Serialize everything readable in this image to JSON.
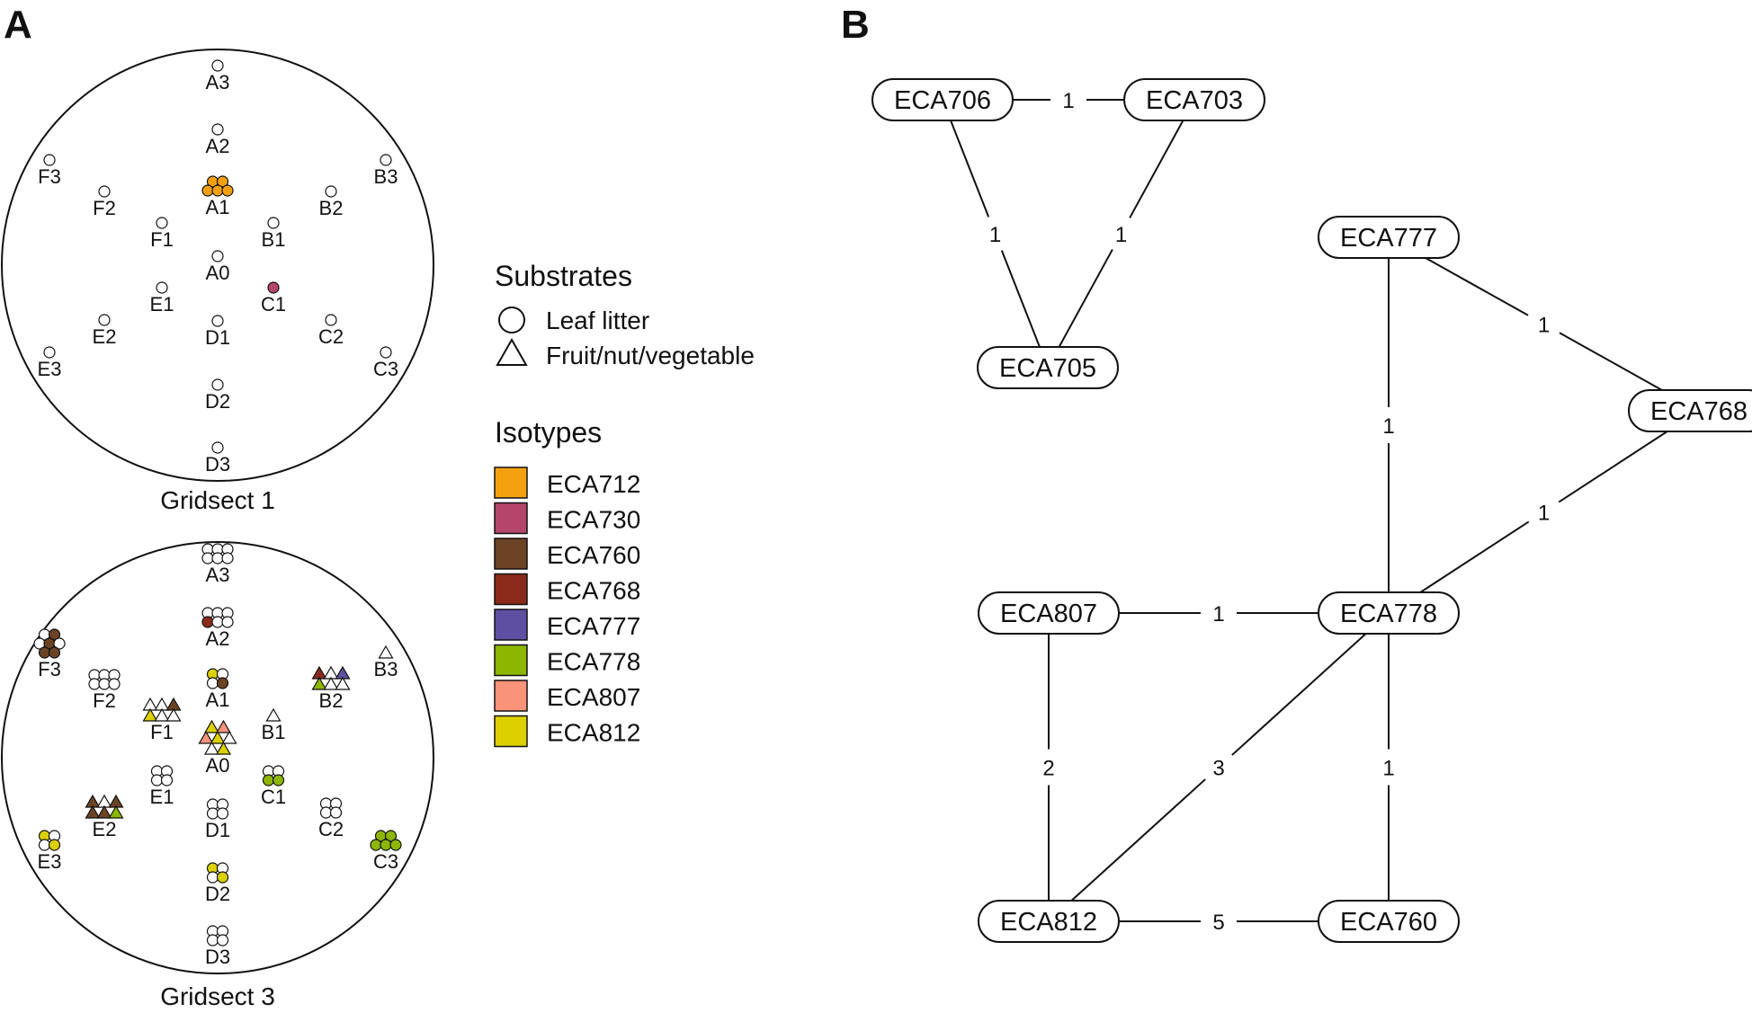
{
  "panels": {
    "a": "A",
    "b": "B"
  },
  "colors": {
    "ECA712": "#f5a10f",
    "ECA730": "#b4456b",
    "ECA760": "#6b4325",
    "ECA768": "#8b2a1a",
    "ECA777": "#5e4fa2",
    "ECA778": "#8db600",
    "ECA807": "#f9937a",
    "ECA812": "#dcd000"
  },
  "gridsects": [
    {
      "title": "Gridsect 1",
      "sites": [
        {
          "label": "A3",
          "shape": "circle",
          "fills": [
            null
          ]
        },
        {
          "label": "A2",
          "shape": "circle",
          "fills": [
            null
          ]
        },
        {
          "label": "A1",
          "shape": "circle",
          "fills": [
            "ECA712",
            "ECA712",
            "ECA712",
            "ECA712",
            "ECA712"
          ]
        },
        {
          "label": "A0",
          "shape": "circle",
          "fills": [
            null
          ]
        },
        {
          "label": "B1",
          "shape": "circle",
          "fills": [
            null
          ]
        },
        {
          "label": "B2",
          "shape": "circle",
          "fills": [
            null
          ]
        },
        {
          "label": "B3",
          "shape": "circle",
          "fills": [
            null
          ]
        },
        {
          "label": "C1",
          "shape": "circle",
          "fills": [
            "ECA730"
          ]
        },
        {
          "label": "C2",
          "shape": "circle",
          "fills": [
            null
          ]
        },
        {
          "label": "C3",
          "shape": "circle",
          "fills": [
            null
          ]
        },
        {
          "label": "D1",
          "shape": "circle",
          "fills": [
            null
          ]
        },
        {
          "label": "D2",
          "shape": "circle",
          "fills": [
            null
          ]
        },
        {
          "label": "D3",
          "shape": "circle",
          "fills": [
            null
          ]
        },
        {
          "label": "E1",
          "shape": "circle",
          "fills": [
            null
          ]
        },
        {
          "label": "E2",
          "shape": "circle",
          "fills": [
            null
          ]
        },
        {
          "label": "E3",
          "shape": "circle",
          "fills": [
            null
          ]
        },
        {
          "label": "F1",
          "shape": "circle",
          "fills": [
            null
          ]
        },
        {
          "label": "F2",
          "shape": "circle",
          "fills": [
            null
          ]
        },
        {
          "label": "F3",
          "shape": "circle",
          "fills": [
            null
          ]
        }
      ]
    },
    {
      "title": "Gridsect 3",
      "sites": [
        {
          "label": "A3",
          "shape": "circle",
          "fills": [
            null,
            null,
            null,
            null,
            null,
            null
          ]
        },
        {
          "label": "A2",
          "shape": "circle",
          "fills": [
            null,
            null,
            null,
            "ECA768",
            null,
            null
          ]
        },
        {
          "label": "A1",
          "shape": "circle",
          "fills": [
            "ECA812",
            null,
            null,
            "ECA760"
          ]
        },
        {
          "label": "A0",
          "shape": "triangle",
          "fills": [
            "ECA812",
            "ECA807",
            "ECA807",
            "ECA812",
            null,
            null,
            "ECA812"
          ]
        },
        {
          "label": "B1",
          "shape": "triangle",
          "fills": [
            null
          ]
        },
        {
          "label": "B2",
          "shape": "triangle",
          "fills": [
            "ECA768",
            null,
            "ECA777",
            "ECA778",
            null,
            null
          ]
        },
        {
          "label": "B3",
          "shape": "triangle",
          "fills": [
            null
          ]
        },
        {
          "label": "C1",
          "shape": "circle",
          "fills": [
            null,
            null,
            "ECA778",
            "ECA778"
          ]
        },
        {
          "label": "C2",
          "shape": "circle",
          "fills": [
            null,
            null,
            null,
            null
          ]
        },
        {
          "label": "C3",
          "shape": "circle",
          "fills": [
            "ECA778",
            "ECA778",
            "ECA778",
            "ECA778",
            "ECA778"
          ]
        },
        {
          "label": "D1",
          "shape": "circle",
          "fills": [
            null,
            null,
            null,
            null
          ]
        },
        {
          "label": "D2",
          "shape": "circle",
          "fills": [
            "ECA812",
            null,
            null,
            "ECA812"
          ]
        },
        {
          "label": "D3",
          "shape": "circle",
          "fills": [
            null,
            null,
            null,
            null
          ]
        },
        {
          "label": "E1",
          "shape": "circle",
          "fills": [
            null,
            null,
            null,
            null
          ]
        },
        {
          "label": "E2",
          "shape": "triangle",
          "fills": [
            "ECA760",
            null,
            "ECA760",
            "ECA760",
            "ECA760",
            "ECA778"
          ]
        },
        {
          "label": "E3",
          "shape": "circle",
          "fills": [
            "ECA812",
            null,
            null,
            "ECA812"
          ]
        },
        {
          "label": "F1",
          "shape": "triangle",
          "fills": [
            null,
            null,
            "ECA760",
            "ECA812",
            null,
            null
          ]
        },
        {
          "label": "F2",
          "shape": "circle",
          "fills": [
            null,
            null,
            null,
            null,
            null,
            null
          ]
        },
        {
          "label": "F3",
          "shape": "circle",
          "fills": [
            null,
            "ECA760",
            null,
            "ECA760",
            null,
            "ECA760",
            "ECA760"
          ]
        }
      ]
    }
  ],
  "legend": {
    "substrates_title": "Substrates",
    "substrates": [
      {
        "shape": "circle",
        "label": "Leaf litter"
      },
      {
        "shape": "triangle",
        "label": "Fruit/nut/vegetable"
      }
    ],
    "isotypes_title": "Isotypes",
    "isotypes": [
      "ECA712",
      "ECA730",
      "ECA760",
      "ECA768",
      "ECA777",
      "ECA778",
      "ECA807",
      "ECA812"
    ]
  },
  "network": {
    "nodes": [
      "ECA706",
      "ECA703",
      "ECA705",
      "ECA777",
      "ECA768",
      "ECA807",
      "ECA778",
      "ECA812",
      "ECA760"
    ],
    "edges": [
      {
        "from": "ECA706",
        "to": "ECA703",
        "weight": "1"
      },
      {
        "from": "ECA706",
        "to": "ECA705",
        "weight": "1"
      },
      {
        "from": "ECA703",
        "to": "ECA705",
        "weight": "1"
      },
      {
        "from": "ECA777",
        "to": "ECA768",
        "weight": "1"
      },
      {
        "from": "ECA777",
        "to": "ECA778",
        "weight": "1"
      },
      {
        "from": "ECA768",
        "to": "ECA778",
        "weight": "1"
      },
      {
        "from": "ECA807",
        "to": "ECA778",
        "weight": "1"
      },
      {
        "from": "ECA807",
        "to": "ECA812",
        "weight": "2"
      },
      {
        "from": "ECA778",
        "to": "ECA812",
        "weight": "3"
      },
      {
        "from": "ECA778",
        "to": "ECA760",
        "weight": "1"
      },
      {
        "from": "ECA812",
        "to": "ECA760",
        "weight": "5"
      }
    ]
  }
}
